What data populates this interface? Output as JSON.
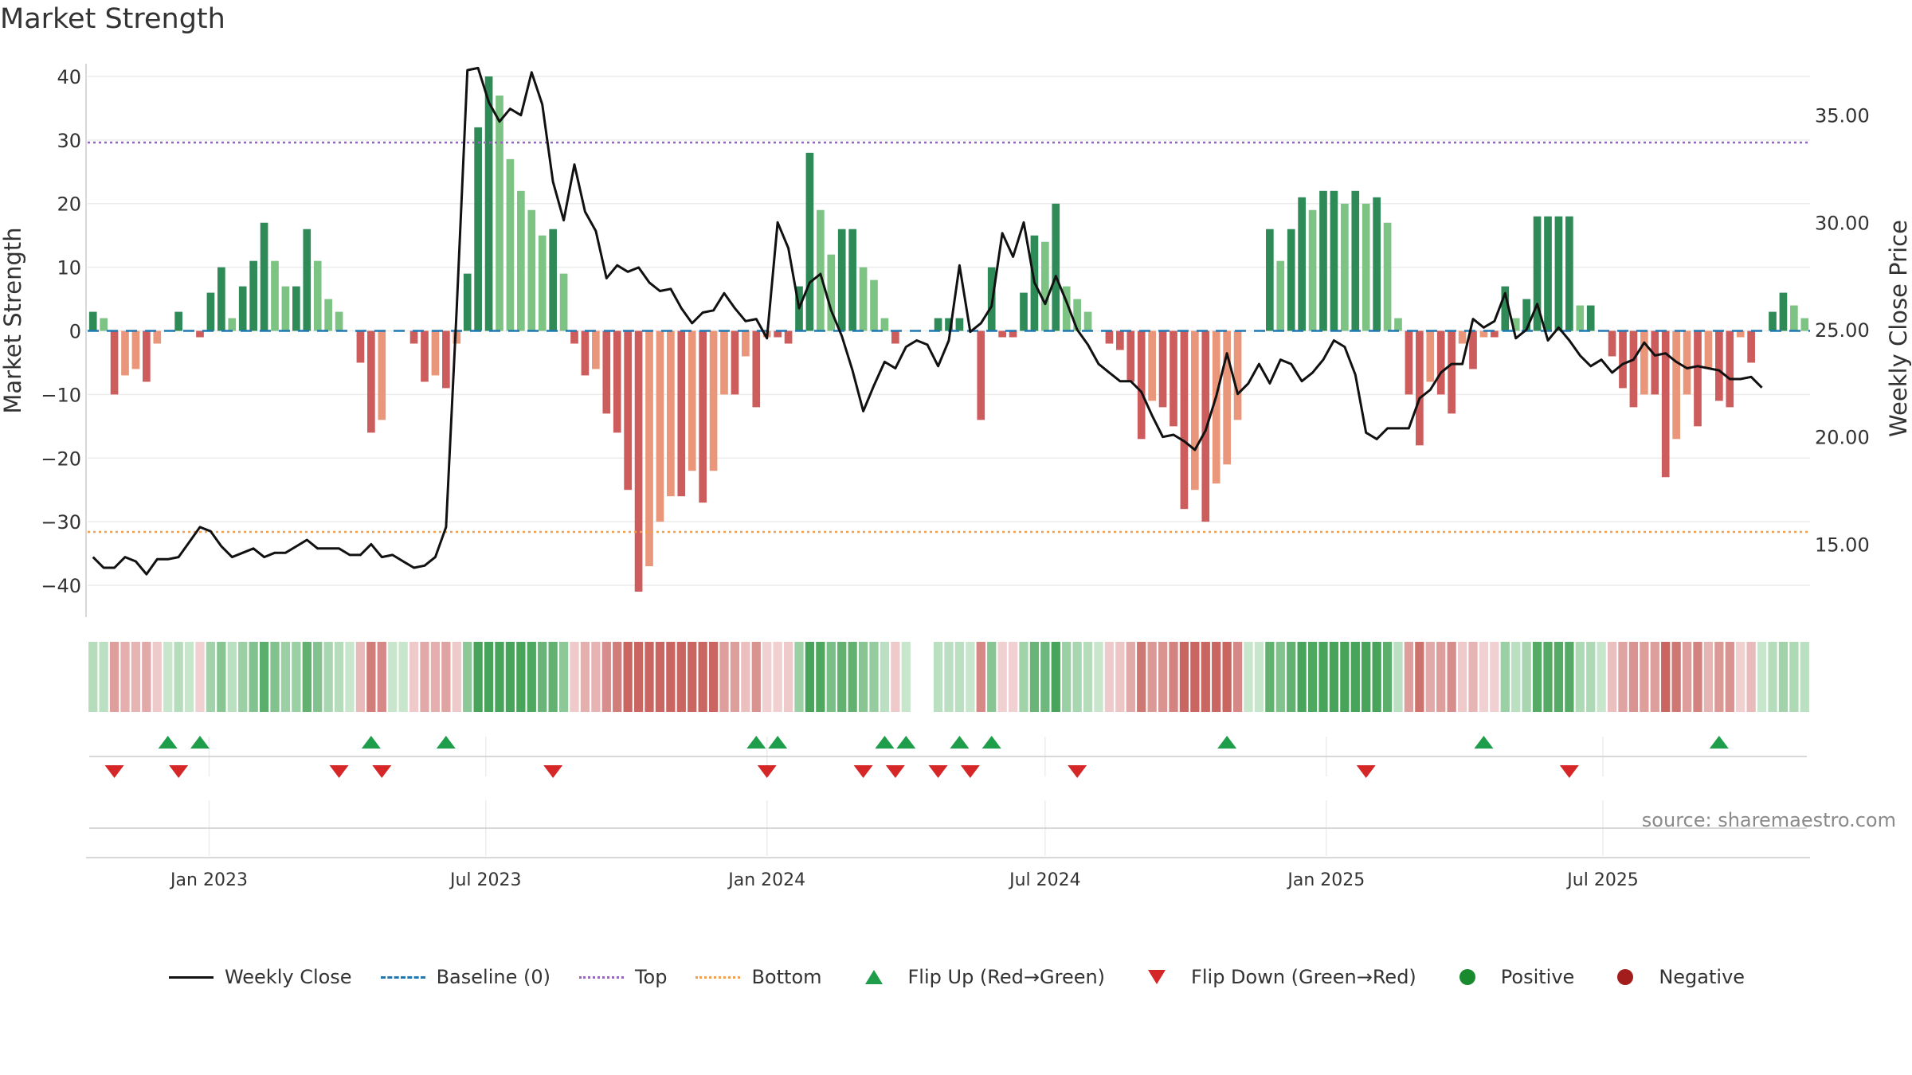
{
  "chart_data": {
    "type": "bar",
    "title": "Market Strength",
    "ylabel_left": "Market Strength",
    "ylabel_right": "Weekly Close Price",
    "ylim_left": [
      -45,
      42
    ],
    "yticks_left": [
      40,
      30,
      20,
      10,
      0,
      -10,
      -20,
      -30,
      -40
    ],
    "ytick_labels_left": [
      "40",
      "30",
      "20",
      "10",
      "0",
      "−10",
      "−20",
      "−30",
      "−40"
    ],
    "ylim_right": [
      11.6,
      37.4
    ],
    "yticks_right": [
      35,
      30,
      25,
      20,
      15
    ],
    "ytick_labels_right": [
      "35.00",
      "30.00",
      "25.00",
      "20.00",
      "15.00"
    ],
    "top_level": 29.6,
    "bottom_level": -31.6,
    "baseline": 0,
    "x_start": "2022-10-17",
    "x_ticks": [
      "2023-01-01",
      "2023-07-01",
      "2024-01-01",
      "2024-07-01",
      "2025-01-01",
      "2025-07-01"
    ],
    "x_tick_labels": [
      "Jan 2023",
      "Jul 2023",
      "Jan 2024",
      "Jul 2024",
      "Jan 2025",
      "Jul 2025"
    ],
    "series": [
      {
        "name": "Market Strength",
        "values": [
          3,
          2,
          -10,
          -7,
          -6,
          -8,
          -2,
          0,
          3,
          0,
          -1,
          6,
          10,
          2,
          7,
          11,
          17,
          11,
          7,
          7,
          16,
          11,
          5,
          3,
          0,
          -5,
          -16,
          -14,
          0,
          0,
          -2,
          -8,
          -7,
          -9,
          -2,
          9,
          32,
          40,
          37,
          27,
          22,
          19,
          15,
          16,
          9,
          -2,
          -7,
          -6,
          -13,
          -16,
          -25,
          -41,
          -37,
          -30,
          -26,
          -26,
          -22,
          -27,
          -22,
          -10,
          -10,
          -4,
          -12,
          -1,
          -1,
          -2,
          7,
          28,
          19,
          12,
          16,
          16,
          10,
          8,
          2,
          -2,
          0,
          0,
          0,
          2,
          2,
          2,
          0,
          -14,
          10,
          -1,
          -1,
          6,
          15,
          14,
          20,
          7,
          5,
          3,
          0,
          -2,
          -3,
          -8,
          -17,
          -11,
          -12,
          -15,
          -28,
          -25,
          -30,
          -24,
          -21,
          -14,
          0,
          0,
          16,
          11,
          16,
          21,
          19,
          22,
          22,
          20,
          22,
          20,
          21,
          17,
          2,
          -10,
          -18,
          -8,
          -10,
          -13,
          -2,
          -6,
          -1,
          -1,
          7,
          2,
          5,
          18,
          18,
          18,
          18,
          4,
          4,
          0,
          -4,
          -9,
          -12,
          -10,
          -10,
          -23,
          -17,
          -10,
          -15,
          -6,
          -11,
          -12,
          -1,
          -5,
          0,
          3,
          6,
          4,
          2
        ]
      },
      {
        "name": "Weekly Close",
        "values": [
          14.4,
          13.9,
          13.9,
          14.4,
          14.2,
          13.6,
          14.3,
          14.3,
          14.4,
          15.1,
          15.8,
          15.6,
          14.9,
          14.4,
          14.6,
          14.8,
          14.4,
          14.6,
          14.6,
          14.9,
          15.2,
          14.8,
          14.8,
          14.8,
          14.5,
          14.5,
          15.0,
          14.4,
          14.5,
          14.2,
          13.9,
          14.0,
          14.4,
          15.8,
          26.0,
          37.1,
          37.2,
          35.6,
          34.7,
          35.3,
          35.0,
          37.0,
          35.5,
          31.9,
          30.1,
          32.7,
          30.5,
          29.6,
          27.4,
          28.0,
          27.7,
          27.9,
          27.2,
          26.8,
          26.9,
          26.0,
          25.3,
          25.8,
          25.9,
          26.7,
          26.0,
          25.4,
          25.5,
          24.6,
          30.0,
          28.8,
          26.0,
          27.2,
          27.6,
          25.9,
          24.7,
          23.1,
          21.2,
          22.4,
          23.5,
          23.2,
          24.2,
          24.5,
          24.3,
          23.3,
          24.5,
          28.0,
          24.9,
          25.3,
          26.1,
          29.5,
          28.4,
          30.0,
          27.2,
          26.2,
          27.5,
          26.3,
          25.0,
          24.3,
          23.4,
          23.0,
          22.6,
          22.6,
          22.1,
          21.0,
          20.0,
          20.1,
          19.8,
          19.4,
          20.3,
          21.9,
          23.9,
          22.0,
          22.5,
          23.4,
          22.5,
          23.6,
          23.4,
          22.6,
          23.0,
          23.6,
          24.5,
          24.2,
          22.9,
          20.2,
          19.9,
          20.4,
          20.4,
          20.4,
          21.8,
          22.2,
          23.0,
          23.4,
          23.4,
          25.5,
          25.1,
          25.4,
          26.7,
          24.6,
          25.0,
          26.2,
          24.5,
          25.1,
          24.5,
          23.8,
          23.3,
          23.6,
          23.0,
          23.4,
          23.6,
          24.4,
          23.8,
          23.9,
          23.5,
          23.2,
          23.3,
          23.2,
          23.1,
          22.7,
          22.7,
          22.8,
          22.3
        ]
      }
    ],
    "flip_up_weeks": [
      7,
      10,
      26,
      33,
      62,
      64,
      74,
      76,
      81,
      84,
      106,
      130,
      152
    ],
    "flip_down_weeks": [
      2,
      8,
      23,
      27,
      43,
      63,
      72,
      75,
      79,
      82,
      92,
      119,
      138
    ],
    "legend": [
      {
        "label": "Weekly Close",
        "symbol": "line",
        "color": "#111111"
      },
      {
        "label": "Baseline (0)",
        "symbol": "dash",
        "color": "#1f77b4"
      },
      {
        "label": "Top",
        "symbol": "dot-line",
        "color": "#9467bd"
      },
      {
        "label": "Bottom",
        "symbol": "dot-line",
        "color": "#f0a050"
      },
      {
        "label": "Flip Up (Red→Green)",
        "symbol": "triangle-up",
        "color": "#1e9e4a"
      },
      {
        "label": "Flip Down (Green→Red)",
        "symbol": "triangle-down",
        "color": "#d62728"
      },
      {
        "label": "Positive",
        "symbol": "dot",
        "color": "#1a8a2e"
      },
      {
        "label": "Negative",
        "symbol": "dot",
        "color": "#a31d1d"
      }
    ],
    "legend_placement": "bottom-center",
    "grid": true
  },
  "source_text": "source: sharemaestro.com",
  "colors": {
    "strong_green": "#2e8b57",
    "light_green": "#7dc383",
    "strong_red": "#cd5c5c",
    "light_red": "#e9967a",
    "price_line": "#111111",
    "baseline": "#1f77b4",
    "top_line": "#9467bd",
    "bottom_line": "#f0a050",
    "flip_up": "#1e9e4a",
    "flip_down": "#d62728"
  }
}
